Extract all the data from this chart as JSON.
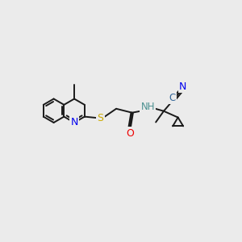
{
  "background_color": "#ebebeb",
  "bond_color": "#1a1a1a",
  "lw": 1.4,
  "colors": {
    "N": "#0000ee",
    "S": "#ccaa00",
    "O": "#ee0000",
    "NH": "#4a9090",
    "C_label": "#336699",
    "N_label": "#0000ee"
  },
  "font_size": 8.5,
  "xlim": [
    0,
    300
  ],
  "ylim": [
    0,
    300
  ]
}
